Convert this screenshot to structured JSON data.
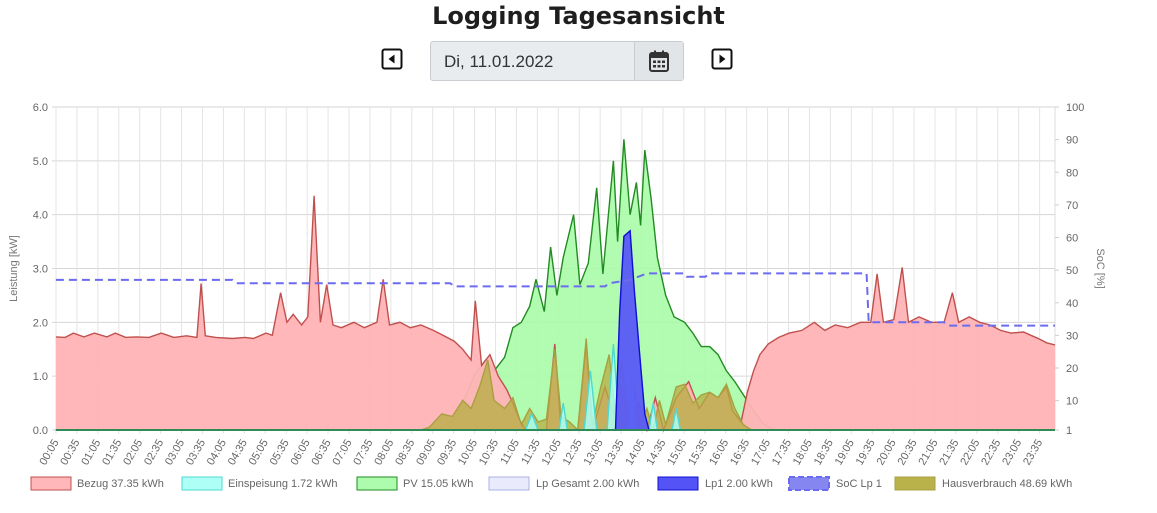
{
  "header": {
    "title": "Logging Tagesansicht",
    "date_value": "Di, 11.01.2022",
    "prev_icon": "caret-left-square-icon",
    "next_icon": "caret-right-square-icon",
    "calendar_icon": "calendar-icon"
  },
  "chart_data": {
    "type": "area",
    "xlabel": "",
    "ylabel": "Leistung [kW]",
    "y2label": "SoC [%]",
    "ylim": [
      0,
      6
    ],
    "y2lim": [
      1,
      100
    ],
    "yticks": [
      "0.0",
      "1.0",
      "2.0",
      "3.0",
      "4.0",
      "5.0",
      "6.0"
    ],
    "y2ticks": [
      "1",
      "10",
      "20",
      "30",
      "40",
      "50",
      "60",
      "70",
      "80",
      "90",
      "100"
    ],
    "grid": true,
    "legend_position": "bottom",
    "x_ticks": [
      "00:05",
      "00:35",
      "01:05",
      "01:35",
      "02:05",
      "02:35",
      "03:05",
      "03:35",
      "04:05",
      "04:35",
      "05:05",
      "05:35",
      "06:05",
      "06:35",
      "07:05",
      "07:35",
      "08:05",
      "08:35",
      "09:05",
      "09:35",
      "10:05",
      "10:35",
      "11:05",
      "11:35",
      "12:05",
      "12:35",
      "13:05",
      "13:35",
      "14:05",
      "14:35",
      "15:05",
      "15:35",
      "16:05",
      "16:35",
      "17:05",
      "17:35",
      "18:05",
      "18:35",
      "19:05",
      "19:35",
      "20:05",
      "20:35",
      "21:05",
      "21:35",
      "22:05",
      "22:35",
      "23:05",
      "23:35"
    ],
    "x_unit": "hours",
    "series": [
      {
        "name": "Bezug 37.35 kWh",
        "color": "#c0504d",
        "fill": "#ffb3b5",
        "axis": "left",
        "points": [
          [
            0.08,
            1.73
          ],
          [
            0.3,
            1.72
          ],
          [
            0.5,
            1.8
          ],
          [
            0.75,
            1.73
          ],
          [
            1.0,
            1.8
          ],
          [
            1.3,
            1.73
          ],
          [
            1.5,
            1.8
          ],
          [
            1.75,
            1.72
          ],
          [
            2.0,
            1.73
          ],
          [
            2.3,
            1.72
          ],
          [
            2.6,
            1.8
          ],
          [
            2.9,
            1.72
          ],
          [
            3.2,
            1.75
          ],
          [
            3.45,
            1.72
          ],
          [
            3.55,
            2.72
          ],
          [
            3.65,
            1.75
          ],
          [
            3.9,
            1.72
          ],
          [
            4.3,
            1.7
          ],
          [
            4.6,
            1.72
          ],
          [
            4.8,
            1.7
          ],
          [
            5.1,
            1.8
          ],
          [
            5.25,
            1.76
          ],
          [
            5.45,
            2.55
          ],
          [
            5.6,
            2.0
          ],
          [
            5.75,
            2.15
          ],
          [
            5.95,
            1.95
          ],
          [
            6.1,
            2.1
          ],
          [
            6.25,
            4.35
          ],
          [
            6.4,
            2.0
          ],
          [
            6.55,
            2.7
          ],
          [
            6.7,
            1.95
          ],
          [
            6.9,
            1.9
          ],
          [
            7.2,
            2.0
          ],
          [
            7.45,
            1.9
          ],
          [
            7.75,
            2.0
          ],
          [
            7.9,
            2.8
          ],
          [
            8.05,
            1.95
          ],
          [
            8.3,
            2.0
          ],
          [
            8.55,
            1.9
          ],
          [
            8.8,
            1.95
          ],
          [
            9.1,
            1.85
          ],
          [
            9.35,
            1.75
          ],
          [
            9.6,
            1.65
          ],
          [
            9.8,
            1.5
          ],
          [
            10.0,
            1.3
          ],
          [
            10.1,
            2.4
          ],
          [
            10.25,
            1.2
          ],
          [
            10.45,
            1.4
          ],
          [
            10.65,
            1.0
          ],
          [
            10.85,
            0.75
          ],
          [
            11.0,
            0.5
          ],
          [
            11.15,
            0.2
          ],
          [
            11.3,
            0.0
          ],
          [
            11.5,
            0.0
          ],
          [
            11.8,
            0.0
          ],
          [
            12.0,
            1.6
          ],
          [
            12.15,
            0.0
          ],
          [
            12.55,
            0.0
          ],
          [
            12.75,
            1.6
          ],
          [
            12.9,
            0.0
          ],
          [
            13.2,
            0.8
          ],
          [
            13.4,
            0.3
          ],
          [
            13.6,
            0.8
          ],
          [
            13.8,
            0.0
          ],
          [
            14.0,
            0.5
          ],
          [
            14.2,
            0.0
          ],
          [
            14.4,
            0.6
          ],
          [
            14.6,
            0.0
          ],
          [
            14.9,
            0.6
          ],
          [
            15.2,
            0.9
          ],
          [
            15.45,
            0.4
          ],
          [
            15.7,
            0.7
          ],
          [
            15.9,
            0.6
          ],
          [
            16.1,
            0.8
          ],
          [
            16.25,
            0.35
          ],
          [
            16.45,
            0.15
          ],
          [
            16.6,
            0.7
          ],
          [
            16.75,
            1.1
          ],
          [
            16.9,
            1.4
          ],
          [
            17.1,
            1.6
          ],
          [
            17.35,
            1.72
          ],
          [
            17.6,
            1.8
          ],
          [
            17.9,
            1.85
          ],
          [
            18.2,
            2.0
          ],
          [
            18.45,
            1.85
          ],
          [
            18.7,
            1.95
          ],
          [
            19.0,
            1.9
          ],
          [
            19.3,
            2.0
          ],
          [
            19.55,
            2.0
          ],
          [
            19.7,
            2.9
          ],
          [
            19.85,
            2.0
          ],
          [
            20.1,
            2.05
          ],
          [
            20.3,
            3.02
          ],
          [
            20.45,
            2.0
          ],
          [
            20.7,
            2.1
          ],
          [
            21.0,
            2.0
          ],
          [
            21.3,
            2.0
          ],
          [
            21.5,
            2.55
          ],
          [
            21.65,
            2.0
          ],
          [
            21.9,
            2.1
          ],
          [
            22.15,
            2.0
          ],
          [
            22.4,
            1.95
          ],
          [
            22.65,
            1.85
          ],
          [
            22.9,
            1.8
          ],
          [
            23.2,
            1.82
          ],
          [
            23.4,
            1.75
          ],
          [
            23.55,
            1.7
          ],
          [
            23.75,
            1.62
          ],
          [
            23.95,
            1.58
          ]
        ]
      },
      {
        "name": "Einspeisung 1.72 kWh",
        "color": "#4dd9d0",
        "fill": "#aafff5",
        "axis": "left",
        "points": [
          [
            0.08,
            0
          ],
          [
            11.3,
            0
          ],
          [
            11.45,
            0.3
          ],
          [
            11.6,
            0
          ],
          [
            12.1,
            0
          ],
          [
            12.2,
            0.5
          ],
          [
            12.3,
            0
          ],
          [
            12.7,
            0
          ],
          [
            12.85,
            1.1
          ],
          [
            13.0,
            0
          ],
          [
            13.25,
            0
          ],
          [
            13.4,
            1.6
          ],
          [
            13.55,
            0
          ],
          [
            13.75,
            0
          ],
          [
            13.85,
            1.1
          ],
          [
            13.95,
            0
          ],
          [
            14.25,
            0
          ],
          [
            14.35,
            0.5
          ],
          [
            14.45,
            0
          ],
          [
            14.8,
            0
          ],
          [
            14.9,
            0.4
          ],
          [
            15.0,
            0
          ],
          [
            23.95,
            0
          ]
        ]
      },
      {
        "name": "PV 15.05 kWh",
        "color": "#228b22",
        "fill": "#a9fca9",
        "axis": "left",
        "points": [
          [
            0.08,
            0
          ],
          [
            9.0,
            0
          ],
          [
            9.3,
            0.05
          ],
          [
            9.6,
            0.2
          ],
          [
            9.85,
            0.6
          ],
          [
            10.1,
            1.05
          ],
          [
            10.35,
            1.3
          ],
          [
            10.55,
            1.1
          ],
          [
            10.8,
            1.35
          ],
          [
            11.0,
            1.9
          ],
          [
            11.2,
            2.0
          ],
          [
            11.4,
            2.3
          ],
          [
            11.55,
            2.8
          ],
          [
            11.75,
            2.2
          ],
          [
            11.9,
            3.4
          ],
          [
            12.05,
            2.5
          ],
          [
            12.2,
            3.2
          ],
          [
            12.45,
            4.0
          ],
          [
            12.6,
            2.7
          ],
          [
            12.8,
            3.1
          ],
          [
            13.0,
            4.5
          ],
          [
            13.15,
            2.9
          ],
          [
            13.4,
            5.0
          ],
          [
            13.5,
            3.5
          ],
          [
            13.65,
            5.4
          ],
          [
            13.8,
            4.0
          ],
          [
            13.95,
            4.6
          ],
          [
            14.05,
            3.8
          ],
          [
            14.15,
            5.2
          ],
          [
            14.3,
            4.3
          ],
          [
            14.45,
            3.2
          ],
          [
            14.65,
            2.5
          ],
          [
            14.85,
            2.1
          ],
          [
            15.1,
            2.0
          ],
          [
            15.3,
            1.8
          ],
          [
            15.5,
            1.55
          ],
          [
            15.7,
            1.55
          ],
          [
            15.9,
            1.4
          ],
          [
            16.1,
            1.1
          ],
          [
            16.3,
            0.9
          ],
          [
            16.55,
            0.6
          ],
          [
            16.8,
            0.3
          ],
          [
            17.0,
            0.1
          ],
          [
            17.2,
            0.02
          ],
          [
            17.4,
            0
          ],
          [
            23.95,
            0
          ]
        ]
      },
      {
        "name": "Lp Gesamt 2.00 kWh",
        "color": "#aab0e6",
        "fill": "#e0e2fb",
        "axis": "left",
        "points": [
          [
            0.08,
            0
          ],
          [
            13.45,
            0
          ],
          [
            13.55,
            2.2
          ],
          [
            13.65,
            3.6
          ],
          [
            13.8,
            3.7
          ],
          [
            13.9,
            2.6
          ],
          [
            14.05,
            1.2
          ],
          [
            14.15,
            0.3
          ],
          [
            14.25,
            0
          ],
          [
            23.95,
            0
          ]
        ]
      },
      {
        "name": "Lp1 2.00 kWh",
        "color": "#1010d0",
        "fill": "#4a4af5",
        "axis": "left",
        "points": [
          [
            0.08,
            0
          ],
          [
            13.45,
            0
          ],
          [
            13.55,
            2.2
          ],
          [
            13.65,
            3.6
          ],
          [
            13.8,
            3.7
          ],
          [
            13.9,
            2.6
          ],
          [
            14.05,
            1.2
          ],
          [
            14.15,
            0.3
          ],
          [
            14.25,
            0
          ],
          [
            23.95,
            0
          ]
        ]
      },
      {
        "name": "SoC Lp 1",
        "color": "#6b6bf0",
        "fill": "#8080f0",
        "axis": "right",
        "dashed": true,
        "points": [
          [
            0.08,
            47
          ],
          [
            4.3,
            47
          ],
          [
            4.4,
            46
          ],
          [
            9.5,
            46
          ],
          [
            9.6,
            45
          ],
          [
            13.2,
            45
          ],
          [
            13.3,
            46
          ],
          [
            13.8,
            47
          ],
          [
            14.2,
            49
          ],
          [
            15.1,
            49
          ],
          [
            15.15,
            48
          ],
          [
            15.6,
            48
          ],
          [
            15.7,
            49
          ],
          [
            19.45,
            49
          ],
          [
            19.5,
            34
          ],
          [
            21.3,
            34
          ],
          [
            21.4,
            33
          ],
          [
            23.95,
            33
          ]
        ]
      },
      {
        "name": "Hausverbrauch 48.69 kWh",
        "color": "#a8a040",
        "fill": "#b5ae40",
        "axis": "left",
        "points": [
          [
            0.08,
            0
          ],
          [
            8.8,
            0
          ],
          [
            9.0,
            0.05
          ],
          [
            9.3,
            0.3
          ],
          [
            9.55,
            0.25
          ],
          [
            9.8,
            0.55
          ],
          [
            10.0,
            0.4
          ],
          [
            10.2,
            0.8
          ],
          [
            10.4,
            1.3
          ],
          [
            10.55,
            0.55
          ],
          [
            10.8,
            0.4
          ],
          [
            11.0,
            0.6
          ],
          [
            11.2,
            0.1
          ],
          [
            11.4,
            0.4
          ],
          [
            11.6,
            0.15
          ],
          [
            11.8,
            0.2
          ],
          [
            12.0,
            1.5
          ],
          [
            12.15,
            0.25
          ],
          [
            12.35,
            0.15
          ],
          [
            12.55,
            0.0
          ],
          [
            12.75,
            1.7
          ],
          [
            12.9,
            0.1
          ],
          [
            13.1,
            0.8
          ],
          [
            13.3,
            1.4
          ],
          [
            13.45,
            0.25
          ],
          [
            13.6,
            1.3
          ],
          [
            13.75,
            0.2
          ],
          [
            13.9,
            0.8
          ],
          [
            14.05,
            0.1
          ],
          [
            14.2,
            0.4
          ],
          [
            14.35,
            0.0
          ],
          [
            14.5,
            0.55
          ],
          [
            14.65,
            0.1
          ],
          [
            14.9,
            0.8
          ],
          [
            15.1,
            0.85
          ],
          [
            15.3,
            0.5
          ],
          [
            15.5,
            0.65
          ],
          [
            15.7,
            0.7
          ],
          [
            15.9,
            0.6
          ],
          [
            16.1,
            0.85
          ],
          [
            16.3,
            0.4
          ],
          [
            16.5,
            0.1
          ],
          [
            16.7,
            0.0
          ],
          [
            23.95,
            0
          ]
        ]
      }
    ]
  }
}
